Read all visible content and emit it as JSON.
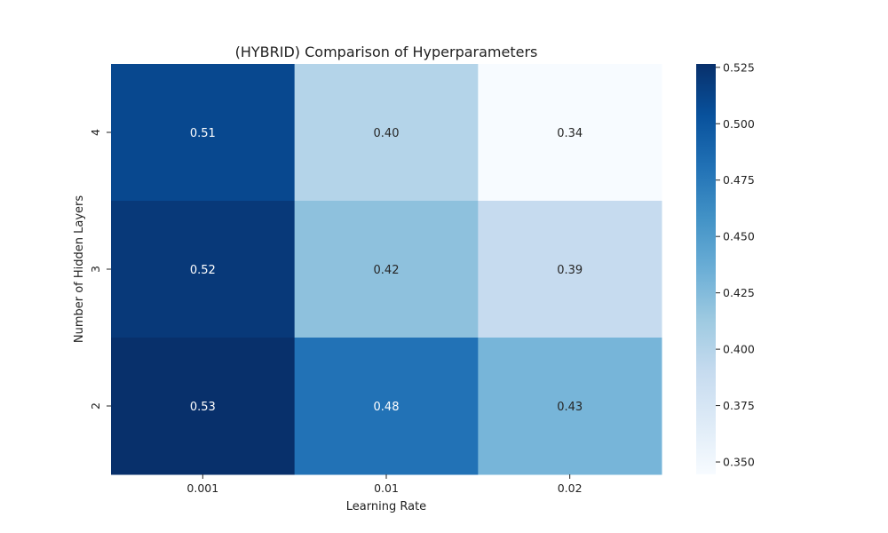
{
  "chart_data": {
    "type": "heatmap",
    "title": "(HYBRID) Comparison of Hyperparameters",
    "xlabel": "Learning Rate",
    "ylabel": "Number of Hidden Layers",
    "x_categories": [
      "0.001",
      "0.01",
      "0.02"
    ],
    "y_categories": [
      "4",
      "3",
      "2"
    ],
    "values": [
      [
        0.51,
        0.4,
        0.34
      ],
      [
        0.52,
        0.42,
        0.39
      ],
      [
        0.53,
        0.48,
        0.43
      ]
    ],
    "cell_labels": [
      [
        "0.51",
        "0.40",
        "0.34"
      ],
      [
        "0.52",
        "0.42",
        "0.39"
      ],
      [
        "0.53",
        "0.48",
        "0.43"
      ]
    ],
    "colormap": "Blues",
    "colorbar": {
      "min": 0.3445,
      "max": 0.5265,
      "ticks": [
        0.35,
        0.375,
        0.4,
        0.425,
        0.45,
        0.475,
        0.5,
        0.525
      ],
      "tick_labels": [
        "0.350",
        "0.375",
        "0.400",
        "0.425",
        "0.450",
        "0.475",
        "0.500",
        "0.525"
      ]
    }
  }
}
